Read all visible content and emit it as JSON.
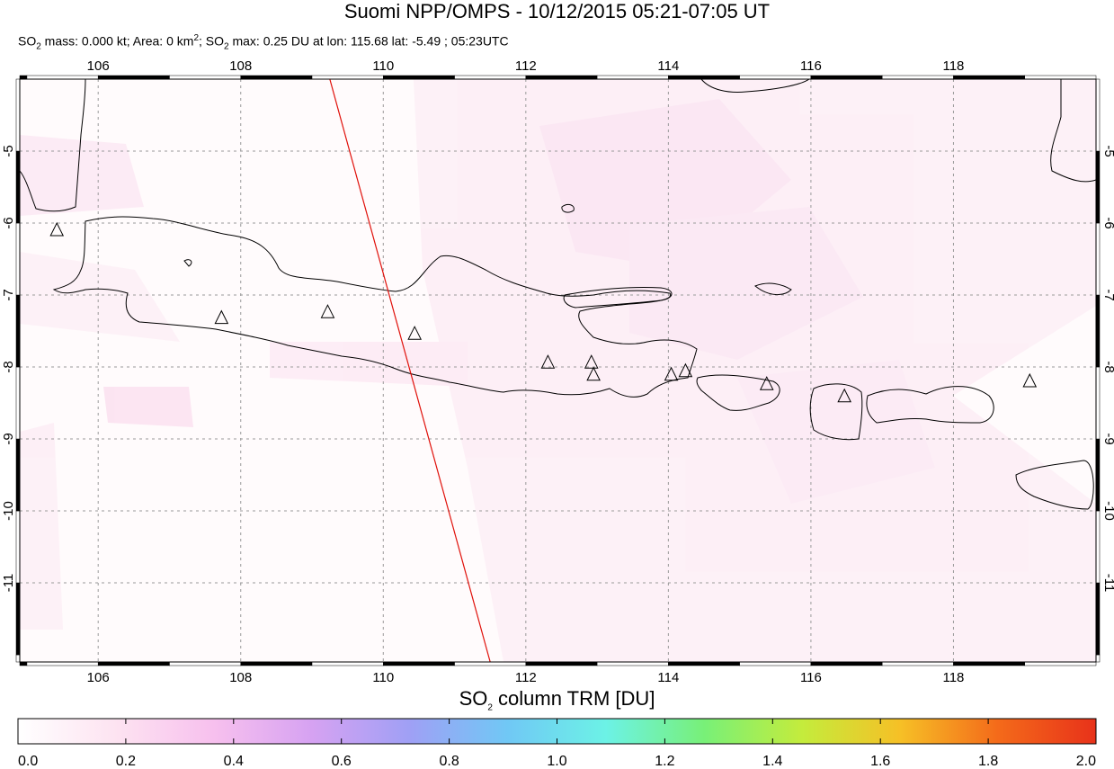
{
  "header": {
    "title": "Suomi NPP/OMPS - 10/12/2015 05:21-07:05 UT",
    "subtitle_mass_prefix": "SO",
    "subtitle_mass_sub": "2",
    "subtitle_mass_text": " mass: 0.000 kt; Area: 0 km",
    "subtitle_area_sup": "2",
    "subtitle_max_prefix": "; SO",
    "subtitle_max_sub": "2",
    "subtitle_max_text": " max: 0.25 DU at lon: 115.68 lat: -5.49 ; 05:23UTC"
  },
  "map": {
    "lon_range": [
      104.9,
      120.0
    ],
    "lat_range": [
      -12.1,
      -4.0
    ],
    "lon_ticks": [
      "106",
      "108",
      "110",
      "112",
      "114",
      "116",
      "118"
    ],
    "lat_ticks": [
      "-5",
      "-6",
      "-7",
      "-8",
      "-9",
      "-10",
      "-11"
    ],
    "volcanoes": [
      {
        "lon": 105.42,
        "lat": -6.1
      },
      {
        "lon": 107.73,
        "lat": -7.32
      },
      {
        "lon": 109.22,
        "lat": -7.24
      },
      {
        "lon": 110.44,
        "lat": -7.54
      },
      {
        "lon": 112.31,
        "lat": -7.94
      },
      {
        "lon": 112.92,
        "lat": -7.94
      },
      {
        "lon": 112.95,
        "lat": -8.11
      },
      {
        "lon": 114.04,
        "lat": -8.11
      },
      {
        "lon": 114.24,
        "lat": -8.06
      },
      {
        "lon": 115.38,
        "lat": -8.24
      },
      {
        "lon": 116.47,
        "lat": -8.41
      },
      {
        "lon": 119.07,
        "lat": -8.2
      }
    ],
    "orbit_track": [
      [
        109.25,
        -4.0
      ],
      [
        111.5,
        -12.1
      ]
    ]
  },
  "colorbar": {
    "title_prefix": "SO",
    "title_sub": "2",
    "title_text": " column TRM [DU]",
    "ticks": [
      "0.0",
      "0.2",
      "0.4",
      "0.6",
      "0.8",
      "1.0",
      "1.2",
      "1.4",
      "1.6",
      "1.8",
      "2.0"
    ],
    "colors": [
      "#ffffff",
      "#fde3f1",
      "#f7c0ee",
      "#d6a2f2",
      "#9fa0f5",
      "#70c8f5",
      "#6cf2e6",
      "#78f078",
      "#c4ec3c",
      "#f6c026",
      "#f46a1a",
      "#e8321a"
    ]
  }
}
